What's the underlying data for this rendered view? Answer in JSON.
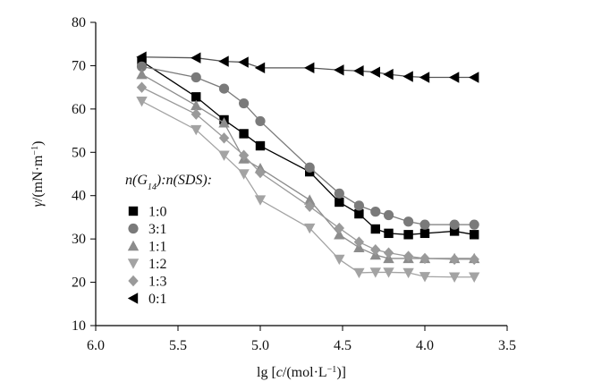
{
  "chart_data": {
    "type": "line",
    "title": "",
    "xlabel_parts": [
      {
        "t": "lg [",
        "i": false
      },
      {
        "t": "c",
        "i": true
      },
      {
        "t": "/(mol·L",
        "i": false
      },
      {
        "t": "−1",
        "i": false,
        "sup": true
      },
      {
        "t": ")]",
        "i": false
      }
    ],
    "ylabel_parts": [
      {
        "t": "γ",
        "i": true
      },
      {
        "t": "/(mN·m",
        "i": false
      },
      {
        "t": "−1",
        "i": false,
        "sup": true
      },
      {
        "t": ")",
        "i": false
      }
    ],
    "xlim": [
      6.0,
      3.5
    ],
    "ylim": [
      10,
      80
    ],
    "x_reversed": true,
    "x_ticks": [
      6.0,
      5.5,
      5.0,
      4.5,
      4.0,
      3.5
    ],
    "x_tick_labels": [
      "6.0",
      "5.5",
      "5.0",
      "4.5",
      "4.0",
      "3.5"
    ],
    "y_ticks": [
      10,
      20,
      30,
      40,
      50,
      60,
      70,
      80
    ],
    "y_tick_labels": [
      "10",
      "20",
      "30",
      "40",
      "50",
      "60",
      "70",
      "80"
    ],
    "grid": false,
    "legend_title_parts": [
      {
        "t": "n",
        "i": true
      },
      {
        "t": "(G",
        "i": false
      },
      {
        "t": "14",
        "i": false,
        "sub": true
      },
      {
        "t": "):",
        "i": false
      },
      {
        "t": "n",
        "i": true
      },
      {
        "t": "(SDS):",
        "i": false
      }
    ],
    "legend_position": "left-middle",
    "series": [
      {
        "name": "1:0",
        "marker": "square",
        "color": "#000000",
        "line_color": "#000000",
        "x": [
          5.72,
          5.39,
          5.22,
          5.1,
          5.0,
          4.7,
          4.52,
          4.4,
          4.3,
          4.22,
          4.1,
          4.0,
          3.82,
          3.7
        ],
        "y": [
          71.0,
          62.8,
          57.5,
          54.3,
          51.5,
          45.5,
          38.5,
          35.8,
          32.3,
          31.3,
          31.0,
          31.3,
          31.8,
          31.0
        ]
      },
      {
        "name": "3:1",
        "marker": "circle",
        "color": "#7a7a7a",
        "line_color": "#7a7a7a",
        "x": [
          5.72,
          5.39,
          5.22,
          5.1,
          5.0,
          4.7,
          4.52,
          4.4,
          4.3,
          4.22,
          4.1,
          4.0,
          3.82,
          3.7
        ],
        "y": [
          69.8,
          67.3,
          64.7,
          61.3,
          57.2,
          46.5,
          40.5,
          37.7,
          36.3,
          35.5,
          34.0,
          33.3,
          33.3,
          33.3
        ]
      },
      {
        "name": "1:1",
        "marker": "triangle-up",
        "color": "#8c8c8c",
        "line_color": "#8c8c8c",
        "x": [
          5.72,
          5.39,
          5.22,
          5.1,
          5.0,
          4.7,
          4.52,
          4.4,
          4.3,
          4.22,
          4.1,
          4.0,
          3.82,
          3.7
        ],
        "y": [
          68.0,
          60.8,
          56.8,
          48.5,
          46.3,
          39.0,
          31.0,
          28.0,
          26.3,
          25.5,
          25.5,
          25.5,
          25.5,
          25.5
        ]
      },
      {
        "name": "1:2",
        "marker": "triangle-down",
        "color": "#a3a3a3",
        "line_color": "#a3a3a3",
        "x": [
          5.72,
          5.39,
          5.22,
          5.1,
          5.0,
          4.7,
          4.52,
          4.4,
          4.3,
          4.22,
          4.1,
          4.0,
          3.82,
          3.7
        ],
        "y": [
          61.8,
          55.2,
          49.3,
          45.0,
          39.0,
          32.5,
          25.3,
          22.2,
          22.3,
          22.3,
          22.2,
          21.3,
          21.2,
          21.2
        ]
      },
      {
        "name": "1:3",
        "marker": "diamond",
        "color": "#9a9a9a",
        "line_color": "#9a9a9a",
        "x": [
          5.72,
          5.39,
          5.22,
          5.1,
          5.0,
          4.7,
          4.52,
          4.4,
          4.3,
          4.22,
          4.1,
          4.0,
          3.82,
          3.7
        ],
        "y": [
          65.0,
          58.8,
          53.3,
          49.3,
          45.3,
          37.5,
          32.5,
          29.3,
          27.5,
          26.8,
          26.0,
          25.5,
          25.3,
          25.3
        ]
      },
      {
        "name": "0:1",
        "marker": "triangle-left",
        "color": "#000000",
        "line_color": "#555555",
        "x": [
          5.72,
          5.39,
          5.22,
          5.1,
          5.0,
          4.7,
          4.52,
          4.4,
          4.3,
          4.22,
          4.1,
          4.0,
          3.82,
          3.7
        ],
        "y": [
          72.0,
          71.8,
          71.0,
          70.8,
          69.5,
          69.5,
          69.0,
          68.8,
          68.5,
          68.0,
          67.5,
          67.3,
          67.3,
          67.3
        ]
      }
    ]
  }
}
